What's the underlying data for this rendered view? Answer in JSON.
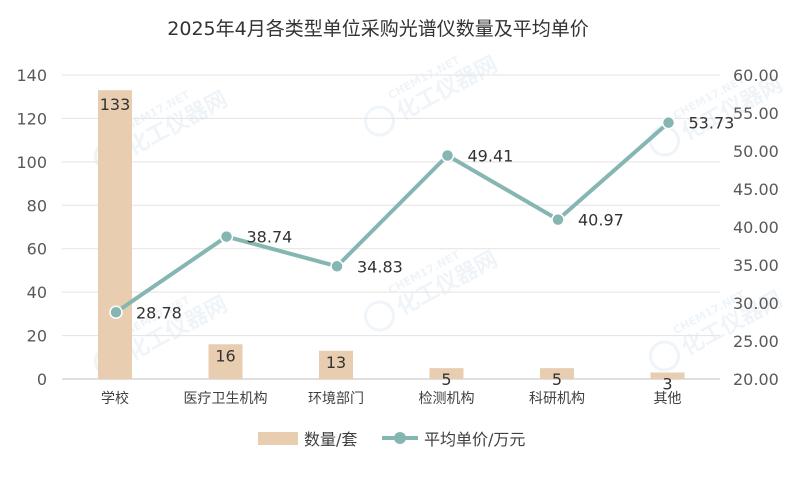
{
  "chart_data": {
    "type": "bar+line",
    "title": "2025年4月各类型单位采购光谱仪数量及平均单价",
    "categories": [
      "学校",
      "医疗卫生机构",
      "环境部门",
      "检测机构",
      "科研机构",
      "其他"
    ],
    "series": [
      {
        "name": "数量/套",
        "type": "bar",
        "axis": "left",
        "values": [
          133,
          16,
          13,
          5,
          5,
          3
        ],
        "labels": [
          "133",
          "16",
          "13",
          "5",
          "5",
          "3"
        ],
        "color": "#e8cdb0"
      },
      {
        "name": "平均单价/万元",
        "type": "line",
        "axis": "right",
        "values": [
          28.78,
          38.74,
          34.83,
          49.41,
          40.97,
          53.73
        ],
        "labels": [
          "28.78",
          "38.74",
          "34.83",
          "49.41",
          "40.97",
          "53.73"
        ],
        "color": "#86b6b2"
      }
    ],
    "y_left": {
      "min": 0,
      "max": 140,
      "ticks": [
        "0",
        "20",
        "40",
        "60",
        "80",
        "100",
        "120",
        "140"
      ]
    },
    "y_right": {
      "min": 20,
      "max": 60,
      "ticks": [
        "20.00",
        "25.00",
        "30.00",
        "35.00",
        "40.00",
        "45.00",
        "50.00",
        "55.00",
        "60.00"
      ]
    },
    "grid": true,
    "legend_position": "bottom"
  },
  "watermark": {
    "logo_text": "CHEM17.NET",
    "text": "化工仪器网"
  }
}
